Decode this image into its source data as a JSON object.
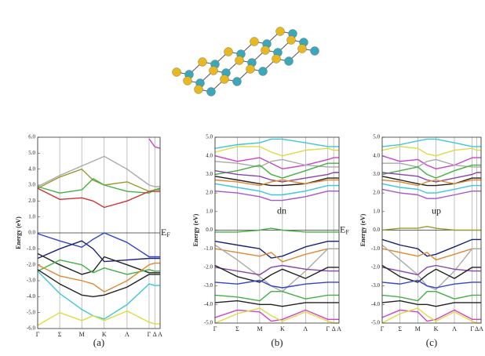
{
  "chart_data": [
    {
      "type": "line",
      "ylabel": "Energy (eV)",
      "panel": "(a)",
      "fermi_label": {
        "text": "E",
        "sub": "F"
      },
      "x": [
        0,
        0.54,
        1.08,
        1.36,
        1.63,
        2.19,
        2.73,
        2.87,
        3.0
      ],
      "xlim": [
        0,
        3.0
      ],
      "xticks": [
        {
          "value": 0,
          "label": "Γ"
        },
        {
          "value": 0.54,
          "label": "Σ"
        },
        {
          "value": 1.08,
          "label": "M"
        },
        {
          "value": 1.63,
          "label": "K"
        },
        {
          "value": 2.19,
          "label": "Λ"
        },
        {
          "value": 2.73,
          "label": "Γ"
        },
        {
          "value": 2.87,
          "label": "Δ"
        },
        {
          "value": 3.0,
          "label": "A"
        }
      ],
      "ylim": [
        -6,
        6
      ],
      "yticks": [
        {
          "value": -6,
          "label": "-6.0"
        },
        {
          "value": -5,
          "label": "-5.0"
        },
        {
          "value": -4,
          "label": "-4.0"
        },
        {
          "value": -3,
          "label": "-3.0"
        },
        {
          "value": -2,
          "label": "-2.0"
        },
        {
          "value": -1,
          "label": "-1.0"
        },
        {
          "value": 0,
          "label": "0.0"
        },
        {
          "value": 1,
          "label": "1.0"
        },
        {
          "value": 2,
          "label": "2.0"
        },
        {
          "value": 3,
          "label": "3.0"
        },
        {
          "value": 4,
          "label": "4.0"
        },
        {
          "value": 5,
          "label": "5.0"
        },
        {
          "value": 6,
          "label": "6.0"
        }
      ],
      "series": [
        {
          "color": "#cc44cc",
          "values": [
            5.5,
            null,
            null,
            null,
            null,
            null,
            5.9,
            5.4,
            5.3
          ]
        },
        {
          "color": "#aaaaaa",
          "values": [
            2.9,
            3.6,
            4.2,
            4.5,
            4.8,
            4.0,
            3.0,
            2.9,
            2.9
          ]
        },
        {
          "color": "#9a9a30",
          "values": [
            2.8,
            3.5,
            4.0,
            3.3,
            3.0,
            3.2,
            2.6,
            2.7,
            2.7
          ]
        },
        {
          "color": "#44b044",
          "values": [
            2.9,
            2.5,
            2.7,
            3.4,
            3.0,
            2.6,
            2.5,
            2.7,
            2.8
          ]
        },
        {
          "color": "#cc3333",
          "values": [
            2.8,
            2.1,
            2.2,
            2.0,
            1.6,
            2.0,
            2.6,
            2.6,
            2.6
          ]
        },
        {
          "color": "#3344cc",
          "values": [
            -0.05,
            -0.5,
            -0.9,
            -0.4,
            0.0,
            -0.6,
            -1.5,
            -1.5,
            -1.5
          ]
        },
        {
          "color": "#1a2277",
          "values": [
            -1.6,
            -1.0,
            -0.5,
            -1.0,
            -1.8,
            -1.7,
            -1.6,
            -1.6,
            -1.6
          ]
        },
        {
          "color": "#222222",
          "values": [
            -1.3,
            -2.0,
            -2.6,
            -2.4,
            -1.5,
            -2.0,
            -2.5,
            -2.5,
            -2.5
          ]
        },
        {
          "color": "#44b044",
          "values": [
            -2.4,
            -1.7,
            -2.0,
            -2.5,
            -2.2,
            -2.6,
            -2.3,
            -2.4,
            -2.4
          ]
        },
        {
          "color": "#e08830",
          "values": [
            -2.0,
            -2.7,
            -3.0,
            -3.2,
            -3.7,
            -3.0,
            -2.0,
            -1.9,
            -1.9
          ]
        },
        {
          "color": "#222222",
          "values": [
            -2.3,
            -3.2,
            -3.9,
            -4.0,
            -3.9,
            -3.4,
            -2.6,
            -2.6,
            -2.6
          ]
        },
        {
          "color": "#3cc8d8",
          "values": [
            -2.4,
            -3.8,
            -4.8,
            -5.2,
            -5.4,
            -4.5,
            -3.2,
            -3.3,
            -3.3
          ]
        },
        {
          "color": "#dddd40",
          "values": [
            -5.8,
            -5.0,
            -5.5,
            -5.2,
            -5.5,
            -4.9,
            -5.6,
            -5.7,
            -5.7
          ]
        }
      ]
    },
    {
      "type": "line",
      "ylabel": "Energy (eV)",
      "panel": "(b)",
      "annotation": "dn",
      "fermi_label": {
        "text": "E",
        "sub": "F"
      },
      "x": [
        0,
        0.54,
        1.08,
        1.36,
        1.63,
        2.19,
        2.73,
        2.87,
        3.0
      ],
      "xlim": [
        0,
        3.0
      ],
      "xticks": [
        {
          "value": 0,
          "label": "Γ"
        },
        {
          "value": 0.54,
          "label": "Σ"
        },
        {
          "value": 1.08,
          "label": "M"
        },
        {
          "value": 1.63,
          "label": "K"
        },
        {
          "value": 2.19,
          "label": "Λ"
        },
        {
          "value": 2.73,
          "label": "Γ"
        },
        {
          "value": 2.87,
          "label": "Δ"
        },
        {
          "value": 3.0,
          "label": "A"
        }
      ],
      "ylim": [
        -5,
        5
      ],
      "yticks": [
        {
          "value": -5,
          "label": "-5.0"
        },
        {
          "value": -4,
          "label": "-4.0"
        },
        {
          "value": -3,
          "label": "-3.0"
        },
        {
          "value": -2,
          "label": "-2.0"
        },
        {
          "value": -1,
          "label": "-1.0"
        },
        {
          "value": 0,
          "label": "0.0"
        },
        {
          "value": 1,
          "label": "1.0"
        },
        {
          "value": 2,
          "label": "2.0"
        },
        {
          "value": 3,
          "label": "3.0"
        },
        {
          "value": 4,
          "label": "4.0"
        },
        {
          "value": 5,
          "label": "5.0"
        }
      ],
      "series": [
        {
          "color": "#3cc8d8",
          "values": [
            4.4,
            4.6,
            4.7,
            4.9,
            4.9,
            4.7,
            4.5,
            4.5,
            4.5
          ]
        },
        {
          "color": "#dddd40",
          "values": [
            4.2,
            4.5,
            4.5,
            4.2,
            4.0,
            4.3,
            4.4,
            4.3,
            4.3
          ]
        },
        {
          "color": "#cc44cc",
          "values": [
            4.0,
            3.7,
            3.9,
            3.6,
            3.3,
            3.5,
            3.8,
            3.9,
            3.9
          ]
        },
        {
          "color": "#aaaaaa",
          "values": [
            3.7,
            3.6,
            3.4,
            3.7,
            3.8,
            3.5,
            3.4,
            3.4,
            3.4
          ]
        },
        {
          "color": "#44b044",
          "values": [
            3.0,
            3.2,
            3.5,
            3.0,
            2.8,
            3.2,
            3.6,
            3.6,
            3.6
          ]
        },
        {
          "color": "#8844aa",
          "values": [
            3.2,
            3.0,
            2.9,
            2.7,
            2.6,
            2.8,
            3.0,
            3.1,
            3.1
          ]
        },
        {
          "color": "#222222",
          "values": [
            2.9,
            2.7,
            2.5,
            2.4,
            2.4,
            2.5,
            2.8,
            2.8,
            2.8
          ]
        },
        {
          "color": "#e08830",
          "values": [
            2.7,
            2.6,
            2.4,
            2.6,
            2.7,
            2.5,
            2.7,
            2.7,
            2.7
          ]
        },
        {
          "color": "#3cc8d8",
          "values": [
            2.5,
            2.3,
            2.1,
            1.9,
            1.9,
            2.1,
            2.4,
            2.4,
            2.4
          ]
        },
        {
          "color": "#aa55cc",
          "values": [
            2.1,
            2.0,
            1.8,
            1.6,
            1.6,
            1.8,
            2.1,
            2.1,
            2.1
          ]
        },
        {
          "color": "#44b044",
          "values": [
            -0.1,
            -0.1,
            0.0,
            0.1,
            0.0,
            -0.1,
            -0.1,
            -0.1,
            -0.1
          ]
        },
        {
          "color": "#1a2277",
          "values": [
            -0.6,
            -0.8,
            -1.0,
            -1.5,
            -1.4,
            -0.9,
            -0.6,
            -0.6,
            -0.6
          ]
        },
        {
          "color": "#e08830",
          "values": [
            -1.0,
            -1.2,
            -1.4,
            -1.2,
            -1.7,
            -1.3,
            -1.0,
            -1.0,
            -1.0
          ]
        },
        {
          "color": "#aaaaaa",
          "values": [
            -0.8,
            -1.6,
            -2.5,
            -3.0,
            -3.3,
            -2.2,
            -1.0,
            -1.0,
            -1.0
          ]
        },
        {
          "color": "#8844aa",
          "values": [
            -2.0,
            -2.2,
            -2.4,
            -2.0,
            -1.9,
            -2.1,
            -2.2,
            -2.2,
            -2.2
          ]
        },
        {
          "color": "#222222",
          "values": [
            -1.9,
            -2.5,
            -2.8,
            -2.4,
            -2.1,
            -2.6,
            -2.0,
            -2.0,
            -2.0
          ]
        },
        {
          "color": "#3344cc",
          "values": [
            -2.8,
            -2.9,
            -2.7,
            -3.0,
            -3.1,
            -2.9,
            -2.8,
            -2.8,
            -2.8
          ]
        },
        {
          "color": "#44b044",
          "values": [
            -3.5,
            -3.6,
            -3.8,
            -3.3,
            -3.3,
            -3.7,
            -3.5,
            -3.5,
            -3.5
          ]
        },
        {
          "color": "#222222",
          "values": [
            -3.9,
            -3.8,
            -4.0,
            -4.0,
            -4.1,
            -3.9,
            -3.9,
            -3.9,
            -3.9
          ]
        },
        {
          "color": "#cc44cc",
          "values": [
            -4.7,
            -4.3,
            -4.4,
            -4.9,
            -4.8,
            -4.3,
            -4.8,
            -4.8,
            -4.8
          ]
        },
        {
          "color": "#dddd40",
          "values": [
            -5.0,
            -4.5,
            -4.2,
            -4.6,
            -4.9,
            -4.4,
            -4.9,
            -5.0,
            -5.0
          ]
        }
      ]
    },
    {
      "type": "line",
      "ylabel": "Energy (eV)",
      "panel": "(c)",
      "annotation": "up",
      "x": [
        0,
        0.54,
        1.08,
        1.36,
        1.63,
        2.19,
        2.73,
        2.87,
        3.0
      ],
      "xlim": [
        0,
        3.0
      ],
      "xticks": [
        {
          "value": 0,
          "label": "Γ"
        },
        {
          "value": 0.54,
          "label": "Σ"
        },
        {
          "value": 1.08,
          "label": "M"
        },
        {
          "value": 1.63,
          "label": "K"
        },
        {
          "value": 2.19,
          "label": "Λ"
        },
        {
          "value": 2.73,
          "label": "Γ"
        },
        {
          "value": 2.87,
          "label": "Δ"
        },
        {
          "value": 3.0,
          "label": "A"
        }
      ],
      "ylim": [
        -5,
        5
      ],
      "yticks": [
        {
          "value": -5,
          "label": "-5.0"
        },
        {
          "value": -4,
          "label": "-4.0"
        },
        {
          "value": -3,
          "label": "-3.0"
        },
        {
          "value": -2,
          "label": "-2.0"
        },
        {
          "value": -1,
          "label": "-1.0"
        },
        {
          "value": 0,
          "label": "0.0"
        },
        {
          "value": 1,
          "label": "1.0"
        },
        {
          "value": 2,
          "label": "2.0"
        },
        {
          "value": 3,
          "label": "3.0"
        },
        {
          "value": 4,
          "label": "4.0"
        },
        {
          "value": 5,
          "label": "5.0"
        }
      ],
      "series": [
        {
          "color": "#3cc8d8",
          "values": [
            4.5,
            4.6,
            4.8,
            4.9,
            4.9,
            4.7,
            4.5,
            4.5,
            4.5
          ]
        },
        {
          "color": "#dddd40",
          "values": [
            4.3,
            4.5,
            4.4,
            4.1,
            4.0,
            4.3,
            4.4,
            4.3,
            4.3
          ]
        },
        {
          "color": "#cc44cc",
          "values": [
            4.0,
            3.7,
            3.8,
            3.5,
            3.3,
            3.5,
            3.9,
            3.9,
            3.9
          ]
        },
        {
          "color": "#aaaaaa",
          "values": [
            3.6,
            3.6,
            3.4,
            3.7,
            3.8,
            3.5,
            3.4,
            3.4,
            3.4
          ]
        },
        {
          "color": "#44b044",
          "values": [
            3.0,
            3.2,
            3.4,
            3.0,
            2.8,
            3.2,
            3.5,
            3.5,
            3.5
          ]
        },
        {
          "color": "#8844aa",
          "values": [
            3.1,
            3.0,
            2.9,
            2.7,
            2.6,
            2.8,
            3.0,
            3.1,
            3.1
          ]
        },
        {
          "color": "#222222",
          "values": [
            2.9,
            2.7,
            2.5,
            2.4,
            2.4,
            2.5,
            2.8,
            2.8,
            2.8
          ]
        },
        {
          "color": "#e08830",
          "values": [
            2.7,
            2.6,
            2.4,
            2.6,
            2.7,
            2.5,
            2.7,
            2.7,
            2.7
          ]
        },
        {
          "color": "#3cc8d8",
          "values": [
            2.5,
            2.3,
            2.2,
            2.0,
            2.0,
            2.2,
            2.4,
            2.4,
            2.4
          ]
        },
        {
          "color": "#aa55cc",
          "values": [
            2.2,
            2.0,
            1.9,
            1.7,
            1.7,
            1.9,
            2.1,
            2.1,
            2.1
          ]
        },
        {
          "color": "#9a9a30",
          "values": [
            0.0,
            0.1,
            0.1,
            0.2,
            0.1,
            0.0,
            0.0,
            0.0,
            0.0
          ]
        },
        {
          "color": "#1a2277",
          "values": [
            -0.5,
            -0.8,
            -1.0,
            -1.4,
            -1.3,
            -0.9,
            -0.5,
            -0.5,
            -0.5
          ]
        },
        {
          "color": "#e08830",
          "values": [
            -1.0,
            -1.2,
            -1.4,
            -1.2,
            -1.6,
            -1.3,
            -1.0,
            -1.0,
            -1.0
          ]
        },
        {
          "color": "#aaaaaa",
          "values": [
            -0.8,
            -1.6,
            -2.4,
            -3.0,
            -3.2,
            -2.2,
            -1.0,
            -1.0,
            -1.0
          ]
        },
        {
          "color": "#8844aa",
          "values": [
            -2.0,
            -2.2,
            -2.4,
            -2.0,
            -1.9,
            -2.1,
            -2.2,
            -2.2,
            -2.2
          ]
        },
        {
          "color": "#222222",
          "values": [
            -1.9,
            -2.5,
            -2.8,
            -2.4,
            -2.1,
            -2.6,
            -2.0,
            -2.0,
            -2.0
          ]
        },
        {
          "color": "#3344cc",
          "values": [
            -2.8,
            -2.9,
            -2.7,
            -3.0,
            -3.1,
            -2.9,
            -2.8,
            -2.8,
            -2.8
          ]
        },
        {
          "color": "#44b044",
          "values": [
            -3.5,
            -3.6,
            -3.8,
            -3.3,
            -3.3,
            -3.7,
            -3.5,
            -3.5,
            -3.5
          ]
        },
        {
          "color": "#222222",
          "values": [
            -3.9,
            -3.8,
            -4.0,
            -4.0,
            -4.1,
            -3.9,
            -3.9,
            -3.9,
            -3.9
          ]
        },
        {
          "color": "#cc44cc",
          "values": [
            -4.7,
            -4.3,
            -4.4,
            -4.9,
            -4.8,
            -4.3,
            -4.8,
            -4.8,
            -4.8
          ]
        },
        {
          "color": "#dddd40",
          "values": [
            -5.0,
            -4.5,
            -4.2,
            -4.6,
            -4.9,
            -4.4,
            -4.9,
            -5.0,
            -5.0
          ]
        }
      ]
    }
  ]
}
